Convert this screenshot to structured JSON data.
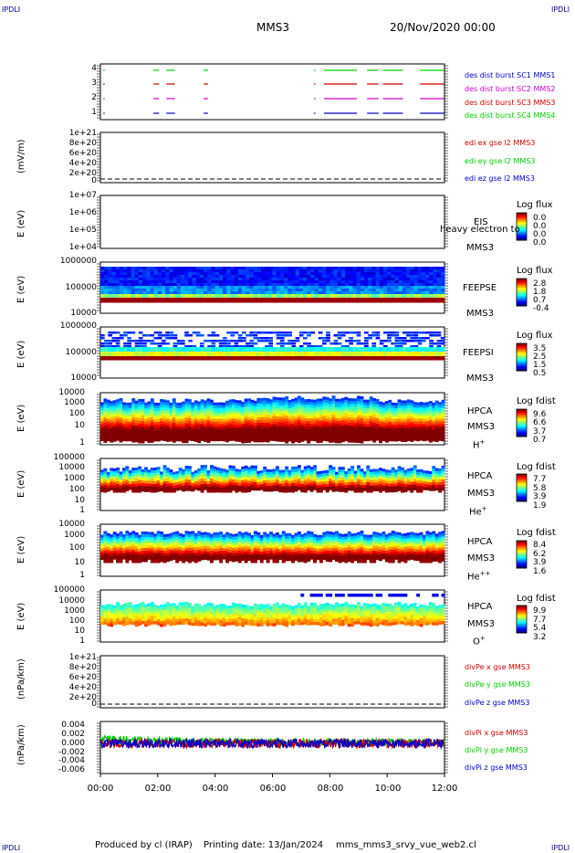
{
  "header": {
    "corner_tl": "IPDLI",
    "corner_tr": "IPDLI",
    "corner_bl": "IPDLI",
    "corner_br": "IPDLI",
    "spacecraft": "MMS3",
    "date": "20/Nov/2020 00:00"
  },
  "footer": {
    "produced_by": "Produced by cl (IRAP)",
    "printing_date": "Printing date: 13/Jan/2024",
    "script": "mms_mms3_srvy_vue_web2.cl"
  },
  "x_ticks": [
    "00:00",
    "02:00",
    "04:00",
    "06:00",
    "08:00",
    "10:00",
    "12:00"
  ],
  "colors": {
    "blue": "#0000cc",
    "magenta": "#cc00cc",
    "red": "#cc0000",
    "green": "#00cc00"
  },
  "panels": {
    "burst": {
      "yticks": [
        "4",
        "3",
        "2",
        "1"
      ],
      "legend": [
        "des dist burst SC1 MMS1",
        "des dist burst SC2 MMS2",
        "des dist burst SC3 MMS3",
        "des dist burst SC4 MMS4"
      ]
    },
    "edi": {
      "ylabel": "(mV/m)",
      "yticks": [
        "1e+21",
        "8e+20",
        "6e+20",
        "4e+20",
        "2e+20",
        "0"
      ],
      "legend": [
        "edi ex gse l2 MMS3",
        "edi ey gse l2 MMS3",
        "edi ez gse l2 MMS3"
      ]
    },
    "eis": {
      "ylabel": "E (eV)",
      "yticks": [
        "1e+07",
        "1e+06",
        "1e+05",
        "1e+04"
      ],
      "inst": "EIS",
      "sub": "heavy electron to",
      "sc": "MMS3",
      "cbar_title": "Log flux",
      "cbar_vals": [
        "0.0",
        "0.0",
        "0.0",
        "0.0"
      ]
    },
    "feepse": {
      "ylabel": "E (eV)",
      "yticks": [
        "1000000",
        "100000",
        "10000"
      ],
      "inst": "FEEPSE",
      "sc": "MMS3",
      "cbar_title": "Log flux",
      "cbar_vals": [
        "2.8",
        "1.8",
        "0.7",
        "-0.4"
      ]
    },
    "feepsi": {
      "ylabel": "E (eV)",
      "yticks": [
        "1000000",
        "100000",
        "10000"
      ],
      "inst": "FEEPSI",
      "sc": "MMS3",
      "cbar_title": "Log flux",
      "cbar_vals": [
        "3.5",
        "2.5",
        "1.5",
        "0.5"
      ]
    },
    "hpca_h": {
      "ylabel": "E (eV)",
      "yticks": [
        "10000",
        "1000",
        "100",
        "10",
        "1"
      ],
      "inst": "HPCA",
      "sc": "MMS3",
      "species": "H",
      "charge": "+",
      "cbar_title": "Log fdist",
      "cbar_vals": [
        "9.6",
        "6.6",
        "3.7",
        "0.7"
      ]
    },
    "hpca_he": {
      "ylabel": "E (eV)",
      "yticks": [
        "100000",
        "10000",
        "1000",
        "100",
        "10",
        "1"
      ],
      "inst": "HPCA",
      "sc": "MMS3",
      "species": "He",
      "charge": "+",
      "cbar_title": "Log fdist",
      "cbar_vals": [
        "7.7",
        "5.8",
        "3.9",
        "1.9"
      ]
    },
    "hpca_hepp": {
      "ylabel": "E (eV)",
      "yticks": [
        "10000",
        "1000",
        "100",
        "10",
        "1"
      ],
      "inst": "HPCA",
      "sc": "MMS3",
      "species": "He",
      "charge": "++",
      "cbar_title": "Log fdist",
      "cbar_vals": [
        "8.4",
        "6.2",
        "3.9",
        "1.6"
      ]
    },
    "hpca_o": {
      "ylabel": "E (eV)",
      "yticks": [
        "100000",
        "10000",
        "1000",
        "100",
        "10",
        "1"
      ],
      "inst": "HPCA",
      "sc": "MMS3",
      "species": "O",
      "charge": "+",
      "cbar_title": "Log fdist",
      "cbar_vals": [
        "9.9",
        "7.7",
        "5.4",
        "3.2"
      ]
    },
    "divpe": {
      "ylabel": "(nPa/km)",
      "yticks": [
        "1e+21",
        "8e+20",
        "6e+20",
        "4e+20",
        "2e+20",
        "0"
      ],
      "legend": [
        "divPe x gse MMS3",
        "divPe y gse MMS3",
        "divPe z gse MMS3"
      ]
    },
    "divpi": {
      "ylabel": "(nPa/km)",
      "yticks": [
        "0.004",
        "0.002",
        "0.000",
        "-0.002",
        "-0.004",
        "-0.006"
      ],
      "legend": [
        "divPi x gse MMS3",
        "divPi y gse MMS3",
        "divPi z gse MMS3"
      ]
    }
  },
  "chart_data": {
    "type": "spectrogram-stack",
    "x_range": [
      "00:00",
      "12:00"
    ],
    "burst_intervals_hours": [
      [
        0.1,
        0.15
      ],
      [
        1.85,
        2.05
      ],
      [
        2.3,
        2.6
      ],
      [
        3.6,
        3.75
      ],
      [
        7.45,
        7.5
      ],
      [
        7.8,
        8.95
      ],
      [
        9.3,
        9.7
      ],
      [
        9.85,
        10.55
      ],
      [
        11.15,
        12.0
      ]
    ]
  }
}
